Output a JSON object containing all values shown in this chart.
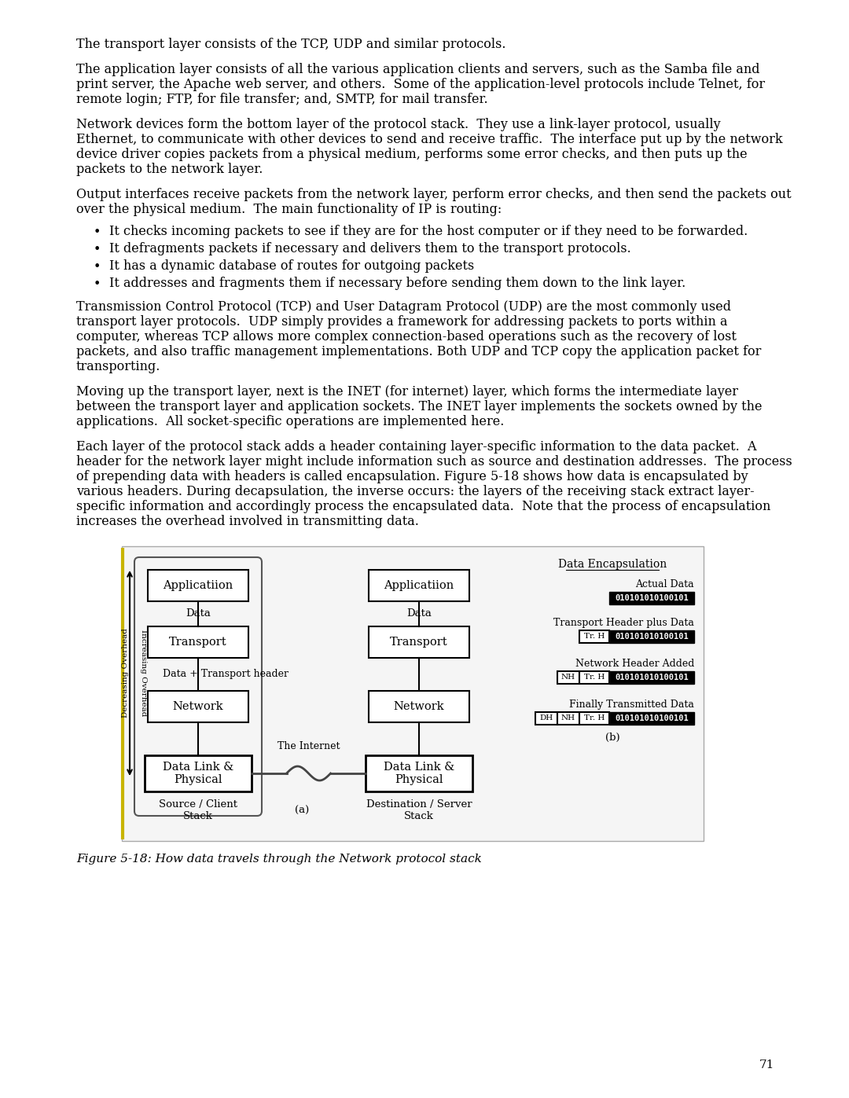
{
  "bg_color": "#ffffff",
  "text_color": "#000000",
  "page_number": "71",
  "paragraphs": [
    "The transport layer consists of the TCP, UDP and similar protocols.",
    "The application layer consists of all the various application clients and servers, such as the Samba file and\nprint server, the Apache web server, and others.  Some of the application-level protocols include Telnet, for\nremote login; FTP, for file transfer; and, SMTP, for mail transfer.",
    "Network devices form the bottom layer of the protocol stack.  They use a link-layer protocol, usually\nEthernet, to communicate with other devices to send and receive traffic.  The interface put up by the network\ndevice driver copies packets from a physical medium, performs some error checks, and then puts up the\npackets to the network layer.",
    "Output interfaces receive packets from the network layer, perform error checks, and then send the packets out\nover the physical medium.  The main functionality of IP is routing:",
    "Transmission Control Protocol (TCP) and User Datagram Protocol (UDP) are the most commonly used\ntransport layer protocols.  UDP simply provides a framework for addressing packets to ports within a\ncomputer, whereas TCP allows more complex connection-based operations such as the recovery of lost\npackets, and also traffic management implementations. Both UDP and TCP copy the application packet for\ntransporting.",
    "Moving up the transport layer, next is the INET (for internet) layer, which forms the intermediate layer\nbetween the transport layer and application sockets. The INET layer implements the sockets owned by the\napplications.  All socket-specific operations are implemented here.",
    "Each layer of the protocol stack adds a header containing layer-specific information to the data packet.  A\nheader for the network layer might include information such as source and destination addresses.  The process\nof prepending data with headers is called encapsulation. Figure 5-18 shows how data is encapsulated by\nvarious headers. During decapsulation, the inverse occurs: the layers of the receiving stack extract layer-\nspecific information and accordingly process the encapsulated data.  Note that the process of encapsulation\nincreases the overhead involved in transmitting data."
  ],
  "bullet_points": [
    "It checks incoming packets to see if they are for the host computer or if they need to be forwarded.",
    "It defragments packets if necessary and delivers them to the transport protocols.",
    "It has a dynamic database of routes for outgoing packets",
    "It addresses and fragments them if necessary before sending them down to the link layer."
  ],
  "figure_caption": "Figure 5-18: How data travels through the Network protocol stack",
  "diagram": {
    "boxes_left": [
      "Applicatiion",
      "Transport",
      "Network",
      "Data Link &\nPhysical"
    ],
    "boxes_right": [
      "Applicatiion",
      "Transport",
      "Network",
      "Data Link &\nPhysical"
    ],
    "decreasing_label": "Decreasing Overhead",
    "increasing_label": "Increasing Overhead",
    "internet_label": "The Internet",
    "src_label": "Source / Client\nStack",
    "dst_label": "Destination / Server\nStack",
    "a_label": "(a)",
    "b_label": "(b)",
    "data_label_left": "Data",
    "data_label_right": "Data",
    "dth_label": "Data + Transport header",
    "encap_title": "Data Encapsulation",
    "actual_data_label": "Actual Data",
    "actual_data_bits": "010101010100101",
    "transport_label": "Transport Header plus Data",
    "transport_bits": "010101010100101",
    "transport_header": "Tr. H",
    "network_label": "Network Header Added",
    "network_bits": "010101010100101",
    "network_header1": "NH",
    "network_header2": "Tr. H",
    "finally_label": "Finally Transmitted Data",
    "finally_bits": "010101010100101",
    "finally_header1": "DH",
    "finally_header2": "NH",
    "finally_header3": "Tr. H"
  }
}
